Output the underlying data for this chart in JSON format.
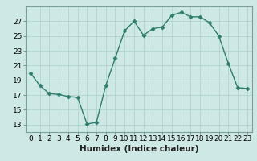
{
  "x": [
    0,
    1,
    2,
    3,
    4,
    5,
    6,
    7,
    8,
    9,
    10,
    11,
    12,
    13,
    14,
    15,
    16,
    17,
    18,
    19,
    20,
    21,
    22,
    23
  ],
  "y": [
    20.0,
    18.3,
    17.2,
    17.1,
    16.8,
    16.7,
    13.1,
    13.3,
    18.3,
    22.0,
    25.7,
    27.0,
    25.1,
    26.0,
    26.2,
    27.8,
    28.2,
    27.6,
    27.6,
    26.8,
    25.0,
    21.3,
    18.0,
    17.9
  ],
  "line_color": "#2e7d6e",
  "marker": "D",
  "marker_size": 2.5,
  "bg_color": "#cde8e5",
  "grid_color": "#b0d4d0",
  "xlabel": "Humidex (Indice chaleur)",
  "xlim": [
    -0.5,
    23.5
  ],
  "ylim": [
    12,
    29
  ],
  "yticks": [
    13,
    15,
    17,
    19,
    21,
    23,
    25,
    27
  ],
  "xticks": [
    0,
    1,
    2,
    3,
    4,
    5,
    6,
    7,
    8,
    9,
    10,
    11,
    12,
    13,
    14,
    15,
    16,
    17,
    18,
    19,
    20,
    21,
    22,
    23
  ],
  "tick_fontsize": 6.5,
  "xlabel_fontsize": 7.5,
  "spine_color": "#7a9e9a"
}
